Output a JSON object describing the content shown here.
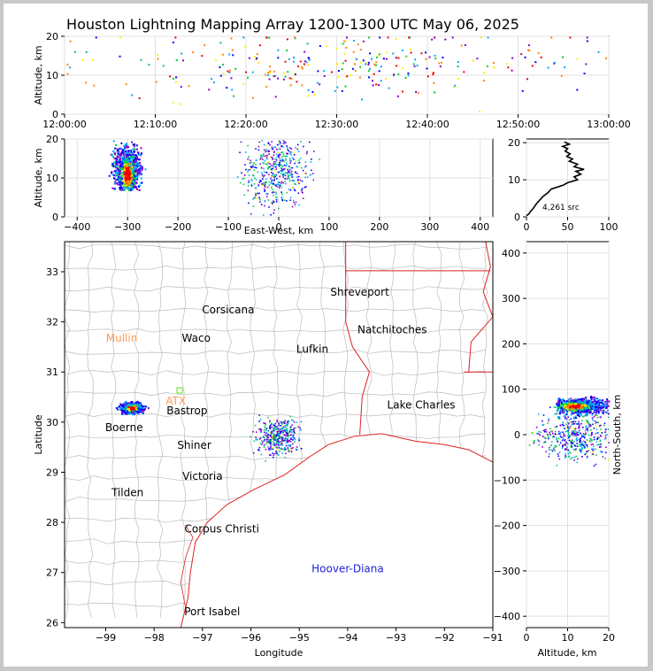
{
  "title": "Houston Lightning Mapping Array 1200-1300 UTC May 06, 2025",
  "colors": {
    "background": "#c8c8c8",
    "state_borders": "#dd2222",
    "county_lines": "#bbbbbb",
    "grid": "#e0e0e0",
    "source_palette": [
      "#8800cc",
      "#0000ff",
      "#00aaff",
      "#00cc44",
      "#ffee00",
      "#ff8800",
      "#ee0000"
    ]
  },
  "chart_data": [
    {
      "id": "time_height",
      "type": "scatter",
      "ylabel": "Altitude, km",
      "xlabel": "",
      "xlim_minutes": [
        0,
        60
      ],
      "ylim": [
        0,
        20
      ],
      "x_ticks": [
        "12:00:00",
        "12:10:00",
        "12:20:00",
        "12:30:00",
        "12:40:00",
        "12:50:00",
        "13:00:00"
      ],
      "y_ticks": [
        "0",
        "10",
        "20"
      ],
      "grid": true
    },
    {
      "id": "ew_height",
      "type": "scatter",
      "xlabel": "East-West, km",
      "ylabel": "Altitude, km",
      "xlim": [
        -425,
        425
      ],
      "ylim": [
        0,
        20
      ],
      "x_ticks": [
        "−400",
        "−300",
        "−200",
        "−100",
        "0",
        "100",
        "200",
        "300",
        "400"
      ],
      "y_ticks": [
        "0",
        "10",
        "20"
      ],
      "grid": true
    },
    {
      "id": "altitude_histogram",
      "type": "line",
      "xlim": [
        0,
        100
      ],
      "ylim": [
        0,
        21
      ],
      "x_ticks": [
        "0",
        "50",
        "100"
      ],
      "y_ticks": [
        "0",
        "10",
        "20"
      ],
      "annotation": "4,261 src",
      "profile": [
        [
          0,
          0.3
        ],
        [
          3,
          0.8
        ],
        [
          5,
          1.5
        ],
        [
          8,
          2.2
        ],
        [
          12,
          3.5
        ],
        [
          16,
          4.5
        ],
        [
          20,
          5.5
        ],
        [
          26,
          6.5
        ],
        [
          30,
          7.5
        ],
        [
          44,
          8.5
        ],
        [
          50,
          9.2
        ],
        [
          62,
          10.0
        ],
        [
          58,
          10.8
        ],
        [
          66,
          11.5
        ],
        [
          60,
          12.3
        ],
        [
          70,
          12.8
        ],
        [
          58,
          13.5
        ],
        [
          62,
          14.2
        ],
        [
          52,
          15.0
        ],
        [
          56,
          15.6
        ],
        [
          49,
          16.3
        ],
        [
          53,
          17.0
        ],
        [
          47,
          17.7
        ],
        [
          50,
          18.4
        ],
        [
          44,
          19.0
        ],
        [
          52,
          19.6
        ],
        [
          46,
          20.2
        ]
      ]
    },
    {
      "id": "plan_view_map",
      "type": "scatter",
      "xlabel": "Longitude",
      "ylabel": "Latitude",
      "xlim": [
        -99.85,
        -91.0
      ],
      "ylim": [
        25.9,
        33.6
      ],
      "x_ticks": [
        "−99",
        "−98",
        "−97",
        "−96",
        "−95",
        "−94",
        "−93",
        "−92",
        "−91"
      ],
      "y_ticks": [
        "26",
        "27",
        "28",
        "29",
        "30",
        "31",
        "32",
        "33"
      ],
      "clusters": [
        {
          "lon": -98.47,
          "lat": 30.3,
          "sources": "dense"
        },
        {
          "lon": -95.45,
          "lat": 29.72,
          "sources": "scattered"
        }
      ]
    },
    {
      "id": "ns_height",
      "type": "scatter",
      "xlabel": "Altitude, km",
      "ylabel": "North-South, km",
      "xlim": [
        0,
        20
      ],
      "ylim": [
        -425,
        425
      ],
      "x_ticks": [
        "0",
        "10",
        "20"
      ],
      "y_ticks": [
        "−400",
        "−300",
        "−200",
        "−100",
        "0",
        "100",
        "200",
        "300",
        "400"
      ],
      "grid": true
    }
  ],
  "cities": [
    {
      "name": "Shreveport",
      "lon": -93.75,
      "lat": 32.52,
      "color": "#000000"
    },
    {
      "name": "Corsicana",
      "lon": -96.47,
      "lat": 32.17,
      "color": "#000000"
    },
    {
      "name": "Natchitoches",
      "lon": -93.08,
      "lat": 31.77,
      "color": "#000000"
    },
    {
      "name": "Mullin",
      "lon": -98.67,
      "lat": 31.6,
      "color": "#ff9955"
    },
    {
      "name": "Waco",
      "lon": -97.13,
      "lat": 31.6,
      "color": "#000000"
    },
    {
      "name": "Lufkin",
      "lon": -94.73,
      "lat": 31.38,
      "color": "#000000"
    },
    {
      "name": "ATX",
      "lon": -97.55,
      "lat": 30.35,
      "color": "#ff9955"
    },
    {
      "name": "Bastrop",
      "lon": -97.32,
      "lat": 30.16,
      "color": "#000000"
    },
    {
      "name": "Lake Charles",
      "lon": -92.48,
      "lat": 30.27,
      "color": "#000000"
    },
    {
      "name": "Boerne",
      "lon": -98.62,
      "lat": 29.82,
      "color": "#000000"
    },
    {
      "name": "Shiner",
      "lon": -97.17,
      "lat": 29.47,
      "color": "#000000"
    },
    {
      "name": "Victoria",
      "lon": -97.0,
      "lat": 28.85,
      "color": "#000000"
    },
    {
      "name": "Tilden",
      "lon": -98.55,
      "lat": 28.52,
      "color": "#000000"
    },
    {
      "name": "Corpus Christi",
      "lon": -96.6,
      "lat": 27.8,
      "color": "#000000"
    },
    {
      "name": "Hoover-Diana",
      "lon": -94.0,
      "lat": 27.0,
      "color": "#2222dd"
    },
    {
      "name": "Port Isabel",
      "lon": -96.8,
      "lat": 26.15,
      "color": "#000000"
    }
  ]
}
